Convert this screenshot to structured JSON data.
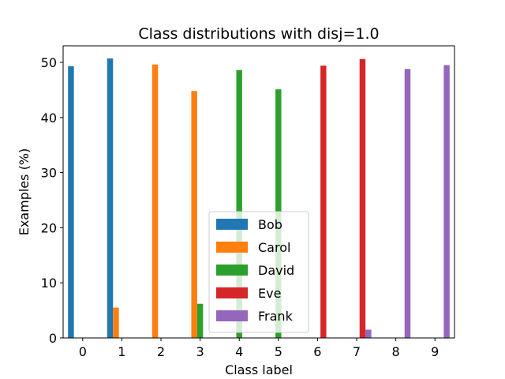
{
  "chart_data": {
    "type": "bar",
    "title": "Class distributions with disj=1.0",
    "xlabel": "Class label",
    "ylabel": "Examples (%)",
    "categories": [
      "0",
      "1",
      "2",
      "3",
      "4",
      "5",
      "6",
      "7",
      "8",
      "9"
    ],
    "ylim": [
      0,
      53
    ],
    "yticks": [
      0,
      10,
      20,
      30,
      40,
      50
    ],
    "grid": false,
    "legend_position": "bottom-center",
    "series": [
      {
        "name": "Bob",
        "color": "#1f77b4",
        "values": [
          49.3,
          50.7,
          0,
          0,
          0,
          0,
          0,
          0,
          0,
          0
        ]
      },
      {
        "name": "Carol",
        "color": "#ff7f0e",
        "values": [
          0,
          5.5,
          49.6,
          44.8,
          0,
          0,
          0,
          0,
          0,
          0
        ]
      },
      {
        "name": "David",
        "color": "#2ca02c",
        "values": [
          0,
          0,
          0,
          6.2,
          48.6,
          45.1,
          0,
          0,
          0,
          0
        ]
      },
      {
        "name": "Eve",
        "color": "#d62728",
        "values": [
          0,
          0,
          0,
          0,
          0,
          0,
          49.4,
          50.6,
          0,
          0
        ]
      },
      {
        "name": "Frank",
        "color": "#9467bd",
        "values": [
          0,
          0,
          0,
          0,
          0,
          0,
          0,
          1.5,
          48.8,
          49.5
        ]
      }
    ]
  }
}
